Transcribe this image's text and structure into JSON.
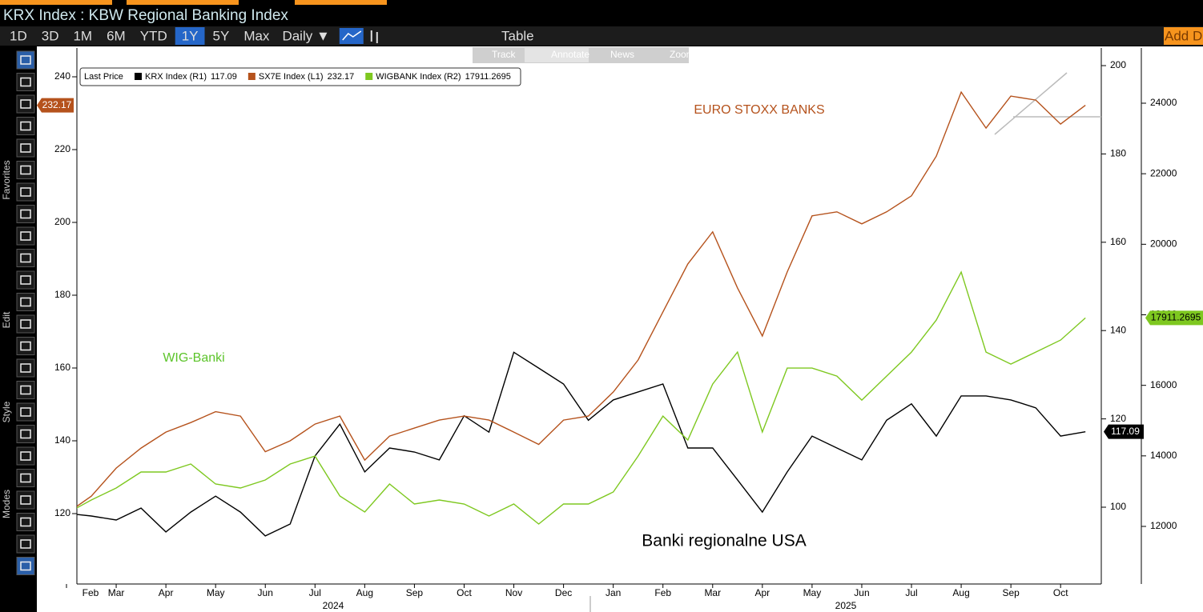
{
  "ui": {
    "title": "KRX Index : KBW Regional Banking Index",
    "ranges": [
      "1D",
      "3D",
      "1M",
      "6M",
      "YTD",
      "1Y",
      "5Y",
      "Max"
    ],
    "selected_range": 5,
    "frequency": "Daily ▼",
    "table": "Table",
    "add": "Add D",
    "tools": [
      "Track",
      "Annotate",
      "News",
      "Zoom"
    ],
    "sidebar": [
      "Favorites",
      "Edit",
      "Style",
      "Modes"
    ]
  },
  "chart_data": {
    "type": "line",
    "legend_title": "Last Price",
    "categories": [
      "Feb",
      null,
      "Mar",
      null,
      "Apr",
      null,
      "May",
      null,
      "Jun",
      null,
      "Jul",
      null,
      "Aug",
      null,
      "Sep",
      null,
      "Oct",
      null,
      "Nov",
      null,
      "Dec",
      null,
      "Jan",
      null,
      "Feb",
      null,
      "Mar",
      null,
      "Apr",
      null,
      "May",
      null,
      "Jun",
      null,
      "Jul",
      null,
      "Aug",
      null,
      "Sep",
      null,
      "Oct",
      null
    ],
    "x_groups": [
      "2024",
      "2025"
    ],
    "series": [
      {
        "name": "KRX Index  (R1)",
        "color": "#000000",
        "axis": "y2",
        "values": [
          98.6,
          98,
          97.1,
          99.8,
          94.4,
          98.9,
          102.5,
          98.9,
          93.5,
          96.2,
          111.6,
          118.8,
          108,
          113.4,
          112.5,
          110.7,
          120.7,
          117,
          135.1,
          131.5,
          127.9,
          119.7,
          124.3,
          126.1,
          127.9,
          113.4,
          113.4,
          106.2,
          98.9,
          108,
          116.1,
          113.4,
          110.7,
          119.7,
          123.4,
          116.1,
          125.2,
          125.2,
          124.3,
          122.5,
          116.1,
          117.09
        ]
      },
      {
        "name": "SX7E Index  (L1)",
        "color": "#b5521c",
        "axis": "y",
        "values": [
          120,
          124.8,
          132.5,
          138,
          142.4,
          145,
          148,
          146.8,
          137,
          140,
          144.6,
          146.8,
          134.7,
          141.3,
          143.5,
          145.7,
          146.8,
          145.7,
          142.4,
          139,
          145.7,
          146.8,
          153.4,
          162.2,
          175.4,
          188.6,
          197.4,
          182,
          168.8,
          186.4,
          201.8,
          202.9,
          199.6,
          202.9,
          207.3,
          218.2,
          235.8,
          225.9,
          234.7,
          233.6,
          227,
          232.17
        ]
      },
      {
        "name": "WIGBANK Index  (R2)",
        "color": "#7ec820",
        "axis": "y3",
        "values": [
          12363,
          12748,
          13088,
          13542,
          13542,
          13769,
          13202,
          13088,
          13315,
          13769,
          13995,
          12862,
          12408,
          13202,
          12635,
          12748,
          12635,
          12295,
          12635,
          12068,
          12635,
          12635,
          12975,
          13995,
          15129,
          14449,
          16036,
          16943,
          14676,
          16490,
          16490,
          16263,
          15583,
          16263,
          16943,
          17850,
          19211,
          16943,
          16603,
          16943,
          17283,
          17911.2695
        ]
      }
    ],
    "ylim": [
      100.66,
      247.91
    ],
    "yticks": [
      120,
      140,
      160,
      180,
      200,
      220,
      240
    ],
    "y2lim": [
      82.61,
      203.99
    ],
    "y2ticks": [
      100,
      120,
      140,
      160,
      180,
      200
    ],
    "y3lim": [
      10367,
      25565
    ],
    "y3ticks": [
      12000,
      14000,
      16000,
      18000,
      20000,
      22000,
      24000
    ],
    "annotations": [
      {
        "text": "EURO STOXX BANKS",
        "color": "#b5521c"
      },
      {
        "text": "WIG-Banki",
        "color": "#5cc42a"
      },
      {
        "text": "Banki regionalne USA",
        "color": "#000000"
      }
    ]
  }
}
